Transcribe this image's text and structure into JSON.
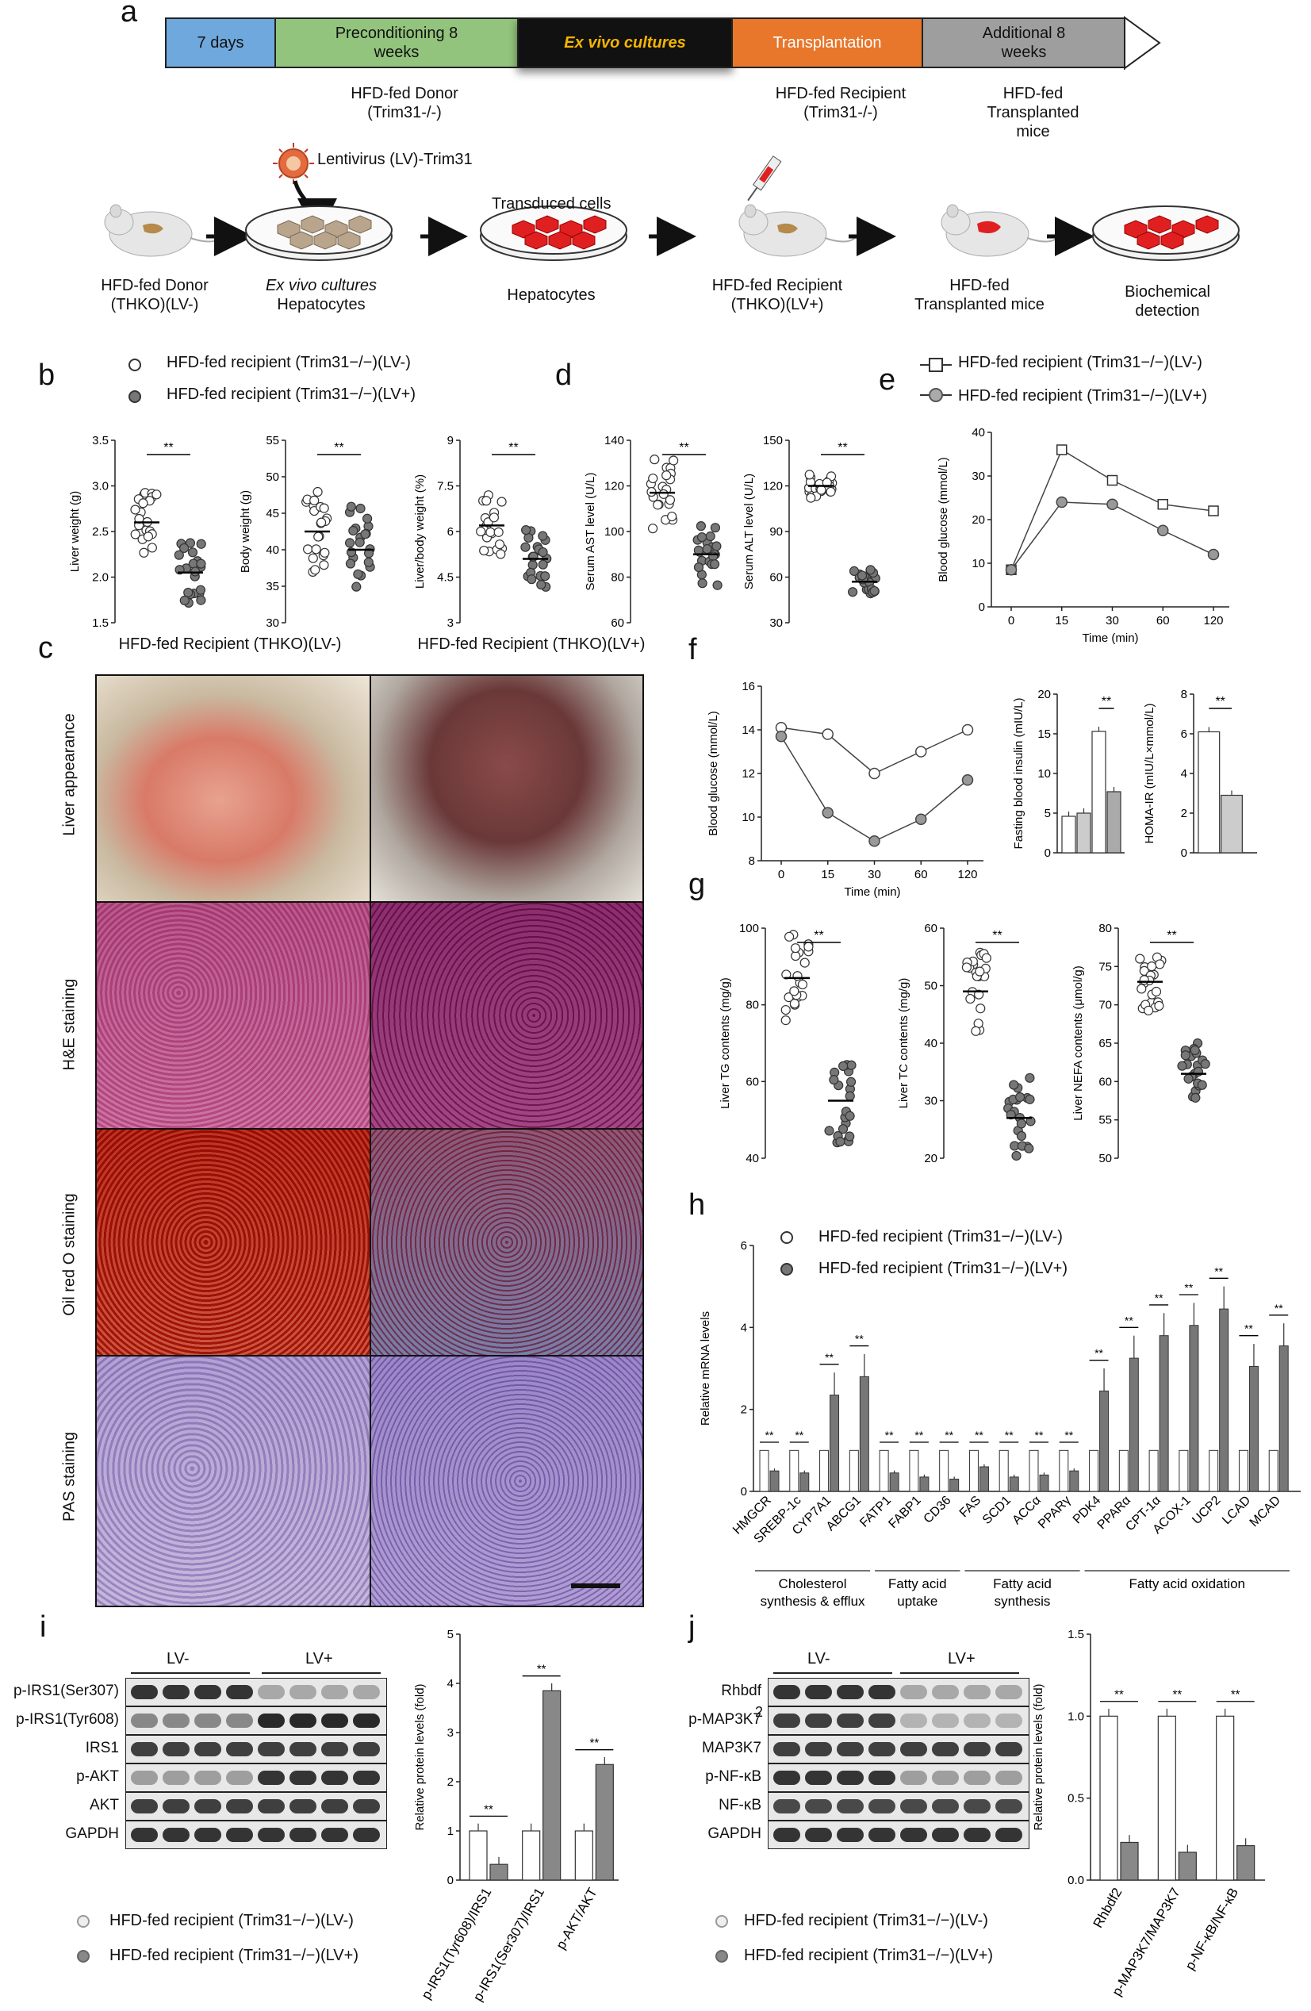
{
  "panel_letters": {
    "a": "a",
    "b": "b",
    "c": "c",
    "d": "d",
    "e": "e",
    "f": "f",
    "g": "g",
    "h": "h",
    "i": "i",
    "j": "j"
  },
  "timeline": {
    "segments": [
      {
        "label": "7 days",
        "color": "#6fa8dc"
      },
      {
        "label": "Preconditioning 8 weeks",
        "color": "#93c47d"
      },
      {
        "label": "Ex vivo cultures",
        "color": "#111111"
      },
      {
        "label": "Transplantation",
        "color": "#e8762b"
      },
      {
        "label": "Additional 8 weeks",
        "color": "#9e9e9e"
      }
    ],
    "donor_label": "HFD-fed Donor (Trim31-/-)",
    "recipient_label": "HFD-fed Recipient (Trim31-/-)",
    "transplanted_label": "HFD-fed Transplanted mice"
  },
  "workflow": {
    "virus_label": "Lentivirus (LV)-Trim31",
    "transduced_label": "Transduced cells",
    "steps": [
      {
        "line1": "HFD-fed Donor",
        "line2": "(THKO)(LV-)"
      },
      {
        "line1": "Ex vivo cultures",
        "line2": "Hepatocytes"
      },
      {
        "line1": "Hepatocytes",
        "line2": ""
      },
      {
        "line1": "HFD-fed Recipient",
        "line2": "(THKO)(LV+)"
      },
      {
        "line1": "HFD-fed",
        "line2": "Transplanted mice"
      },
      {
        "line1": "Biochemical",
        "line2": "detection"
      }
    ]
  },
  "legend": {
    "lvminus": "HFD-fed recipient (Trim31−/−)(LV-)",
    "lvplus": "HFD-fed recipient (Trim31−/−)(LV+)"
  },
  "sig": "**",
  "panel_c": {
    "col1": "HFD-fed Recipient (THKO)(LV-)",
    "col2": "HFD-fed Recipient (THKO)(LV+)",
    "rows": [
      "Liver appearance",
      "H&E staining",
      "Oil red O staining",
      "PAS staining"
    ]
  },
  "chart_data": [
    {
      "id": "b1",
      "type": "scatter",
      "ylabel": "Liver weight (g)",
      "yticks": [
        "1.5",
        "2.0",
        "2.5",
        "3.0",
        "3.5"
      ],
      "ylim": [
        1.5,
        3.5
      ],
      "series": [
        {
          "name": "LV-",
          "mean": 2.6
        },
        {
          "name": "LV+",
          "mean": 2.05
        }
      ]
    },
    {
      "id": "b2",
      "type": "scatter",
      "ylabel": "Body weight (g)",
      "yticks": [
        "30",
        "35",
        "40",
        "45",
        "50",
        "55"
      ],
      "ylim": [
        30,
        55
      ],
      "series": [
        {
          "name": "LV-",
          "mean": 42.5
        },
        {
          "name": "LV+",
          "mean": 40
        }
      ]
    },
    {
      "id": "b3",
      "type": "scatter",
      "ylabel": "Liver/body weight (%)",
      "yticks": [
        "3",
        "4.5",
        "6",
        "7.5",
        "9"
      ],
      "ylim": [
        3,
        9
      ],
      "series": [
        {
          "name": "LV-",
          "mean": 6.2
        },
        {
          "name": "LV+",
          "mean": 5.1
        }
      ]
    },
    {
      "id": "d1",
      "type": "scatter",
      "ylabel": "Serum AST level (U/L)",
      "yticks": [
        "60",
        "80",
        "100",
        "120",
        "140"
      ],
      "ylim": [
        60,
        140
      ],
      "series": [
        {
          "name": "LV-",
          "mean": 117
        },
        {
          "name": "LV+",
          "mean": 90
        }
      ]
    },
    {
      "id": "d2",
      "type": "scatter",
      "ylabel": "Serum ALT level (U/L)",
      "yticks": [
        "30",
        "60",
        "90",
        "120",
        "150"
      ],
      "ylim": [
        30,
        150
      ],
      "series": [
        {
          "name": "LV-",
          "mean": 120
        },
        {
          "name": "LV+",
          "mean": 57
        }
      ]
    },
    {
      "id": "e",
      "type": "line",
      "ylabel": "Blood glucose (mmol/L)",
      "xlabel": "Time (min)",
      "categories": [
        "0",
        "15",
        "30",
        "60",
        "120"
      ],
      "yticks": [
        "0",
        "10",
        "20",
        "30",
        "40"
      ],
      "ylim": [
        0,
        40
      ],
      "series": [
        {
          "name": "HFD-fed recipient (Trim31−/−)(LV-)",
          "values": [
            8.5,
            36,
            29,
            23.5,
            22
          ]
        },
        {
          "name": "HFD-fed recipient (Trim31−/−)(LV+)",
          "values": [
            8.5,
            24,
            23.5,
            17.5,
            12
          ]
        }
      ]
    },
    {
      "id": "f1",
      "type": "line",
      "ylabel": "Blood glucose (mmol/L)",
      "xlabel": "Time (min)",
      "categories": [
        "0",
        "15",
        "30",
        "60",
        "120"
      ],
      "yticks": [
        "8",
        "10",
        "12",
        "14",
        "16"
      ],
      "ylim": [
        8,
        16
      ],
      "series": [
        {
          "name": "LV-",
          "values": [
            14.1,
            13.8,
            12,
            13,
            14
          ]
        },
        {
          "name": "LV+",
          "values": [
            13.7,
            10.2,
            8.9,
            9.9,
            11.7
          ]
        }
      ]
    },
    {
      "id": "f2",
      "type": "bar",
      "ylabel": "Fasting blood insulin (mIU/L)",
      "yticks": [
        "0",
        "5",
        "10",
        "15",
        "20"
      ],
      "ylim": [
        0,
        20
      ],
      "values": [
        4.6,
        5.0,
        15.3,
        7.7
      ]
    },
    {
      "id": "f3",
      "type": "bar",
      "ylabel": "HOMA-IR (mIU/L×mmol/L)",
      "yticks": [
        "0",
        "2",
        "4",
        "6",
        "8"
      ],
      "ylim": [
        0,
        8
      ],
      "values": [
        6.1,
        2.9
      ]
    },
    {
      "id": "g1",
      "type": "scatter",
      "ylabel": "Liver TG contents (mg/g)",
      "yticks": [
        "40",
        "60",
        "80",
        "100"
      ],
      "ylim": [
        40,
        100
      ],
      "series": [
        {
          "name": "LV-",
          "mean": 87
        },
        {
          "name": "LV+",
          "mean": 55
        }
      ]
    },
    {
      "id": "g2",
      "type": "scatter",
      "ylabel": "Liver TC contents (mg/g)",
      "yticks": [
        "20",
        "30",
        "40",
        "50",
        "60"
      ],
      "ylim": [
        20,
        60
      ],
      "series": [
        {
          "name": "LV-",
          "mean": 49
        },
        {
          "name": "LV+",
          "mean": 27
        }
      ]
    },
    {
      "id": "g3",
      "type": "scatter",
      "ylabel": "Liver NEFA contents (μmol/g)",
      "yticks": [
        "50",
        "55",
        "60",
        "65",
        "70",
        "75",
        "80"
      ],
      "ylim": [
        50,
        80
      ],
      "series": [
        {
          "name": "LV-",
          "mean": 73
        },
        {
          "name": "LV+",
          "mean": 61
        }
      ]
    },
    {
      "id": "h",
      "type": "bar",
      "ylabel": "Relative mRNA levels",
      "yticks": [
        "0",
        "2",
        "4",
        "6"
      ],
      "ylim": [
        0,
        6
      ],
      "categories": [
        "HMGCR",
        "SREBP-1c",
        "CYP7A1",
        "ABCG1",
        "FATP1",
        "FABP1",
        "CD36",
        "FAS",
        "SCD1",
        "ACCα",
        "PPARγ",
        "PDK4",
        "PPARα",
        "CPT-1α",
        "ACOX-1",
        "UCP2",
        "LCAD",
        "MCAD"
      ],
      "series": [
        {
          "name": "HFD-fed recipient (Trim31−/−)(LV-)",
          "values": [
            1,
            1,
            1,
            1,
            1,
            1,
            1,
            1,
            1,
            1,
            1,
            1,
            1,
            1,
            1,
            1,
            1,
            1
          ]
        },
        {
          "name": "HFD-fed recipient (Trim31−/−)(LV+)",
          "values": [
            0.5,
            0.45,
            2.35,
            2.8,
            0.45,
            0.35,
            0.3,
            0.6,
            0.35,
            0.4,
            0.5,
            2.45,
            3.25,
            3.8,
            4.05,
            4.45,
            3.05,
            3.55
          ]
        }
      ],
      "groups": [
        "Cholesterol synthesis & efflux",
        "Fatty acid uptake",
        "Fatty acid synthesis",
        "Fatty acid oxidation"
      ]
    },
    {
      "id": "i",
      "type": "bar",
      "ylabel": "Relative protein levels (fold)",
      "yticks": [
        "0",
        "1",
        "2",
        "3",
        "4",
        "5"
      ],
      "ylim": [
        0,
        5
      ],
      "categories": [
        "p-IRS1(Tyr608)/IRS1",
        "p-IRS1(Ser307)/IRS1",
        "p-AKT/AKT"
      ],
      "series": [
        {
          "name": "LV-",
          "values": [
            1,
            1,
            1
          ]
        },
        {
          "name": "LV+",
          "values": [
            0.32,
            3.85,
            2.35
          ]
        }
      ]
    },
    {
      "id": "j",
      "type": "bar",
      "ylabel": "Relative protein levels (fold)",
      "yticks": [
        "0.0",
        "0.5",
        "1.0",
        "1.5"
      ],
      "ylim": [
        0,
        1.5
      ],
      "categories": [
        "Rhbdf2",
        "p-MAP3K7/MAP3K7",
        "p-NF-κB/NF-κB"
      ],
      "series": [
        {
          "name": "LV-",
          "values": [
            1,
            1,
            1
          ]
        },
        {
          "name": "LV+",
          "values": [
            0.23,
            0.17,
            0.21
          ]
        }
      ]
    }
  ],
  "blot_i": {
    "group1": "LV-",
    "group2": "LV+",
    "rows": [
      "p-IRS1(Ser307)",
      "p-IRS1(Tyr608)",
      "IRS1",
      "p-AKT",
      "AKT",
      "GAPDH"
    ]
  },
  "blot_j": {
    "group1": "LV-",
    "group2": "LV+",
    "rows": [
      "Rhbdf",
      "p-MAP3K7",
      "MAP3K7",
      "p-NF-κB",
      "NF-κB",
      "GAPDH"
    ],
    "rhbdf_suffix": "2"
  }
}
